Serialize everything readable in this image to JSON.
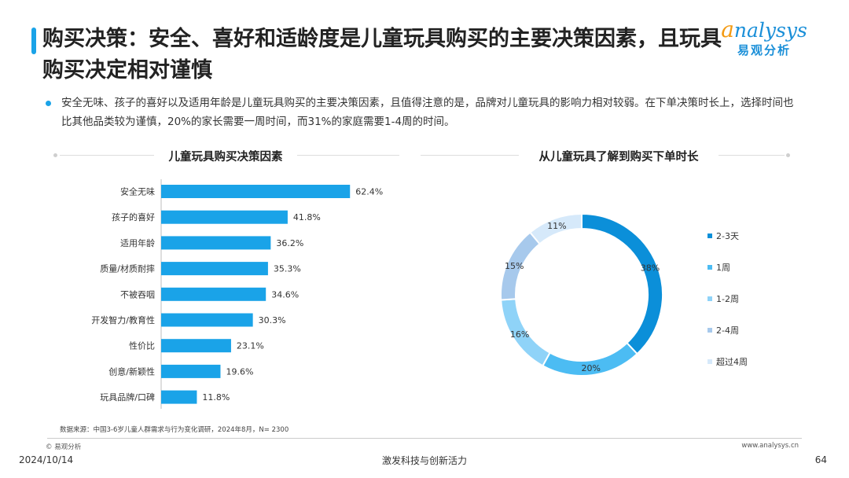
{
  "header": {
    "title": "购买决策：安全、喜好和适龄度是儿童玩具购买的主要决策因素，且玩具购买决定相对谨慎",
    "logo_en_first": "a",
    "logo_en_rest": "nalysys",
    "logo_cn": "易观分析"
  },
  "summary": "安全无味、孩子的喜好以及适用年龄是儿童玩具购买的主要决策因素，且值得注意的是，品牌对儿童玩具的影响力相对较弱。在下单决策时长上，选择时间也比其他品类较为谨慎，20%的家长需要一周时间，而31%的家庭需要1-4周的时间。",
  "left_chart_title": "儿童玩具购买决策因素",
  "right_chart_title": "从儿童玩具了解到购买下单时长",
  "chart_data": [
    {
      "type": "bar",
      "orientation": "horizontal",
      "title": "儿童玩具购买决策因素",
      "categories": [
        "安全无味",
        "孩子的喜好",
        "适用年龄",
        "质量/材质耐摔",
        "不被吞咽",
        "开发智力/教育性",
        "性价比",
        "创意/新颖性",
        "玩具品牌/口碑"
      ],
      "values": [
        62.4,
        41.8,
        36.2,
        35.3,
        34.6,
        30.3,
        23.1,
        19.6,
        11.8
      ],
      "value_suffix": "%",
      "color": "#1aa3e8",
      "grid": false
    },
    {
      "type": "pie",
      "donut": true,
      "title": "从儿童玩具了解到购买下单时长",
      "labels": [
        "2-3天",
        "1周",
        "1-2周",
        "2-4周",
        "超过4周"
      ],
      "values": [
        38,
        20,
        16,
        15,
        11
      ],
      "value_suffix": "%",
      "colors": [
        "#0b8fd9",
        "#4cbcf3",
        "#8fd3f8",
        "#a7c9ec",
        "#d6e9fa"
      ],
      "legend_position": "right"
    }
  ],
  "footer": {
    "source": "数据来源：中国3-6岁儿童人群需求与行为变化调研，2024年8月，N= 2300",
    "copyright": "© 易观分析",
    "website": "www.analysys.cn",
    "date": "2024/10/14",
    "slogan": "激发科技与创新活力",
    "page": "64"
  }
}
